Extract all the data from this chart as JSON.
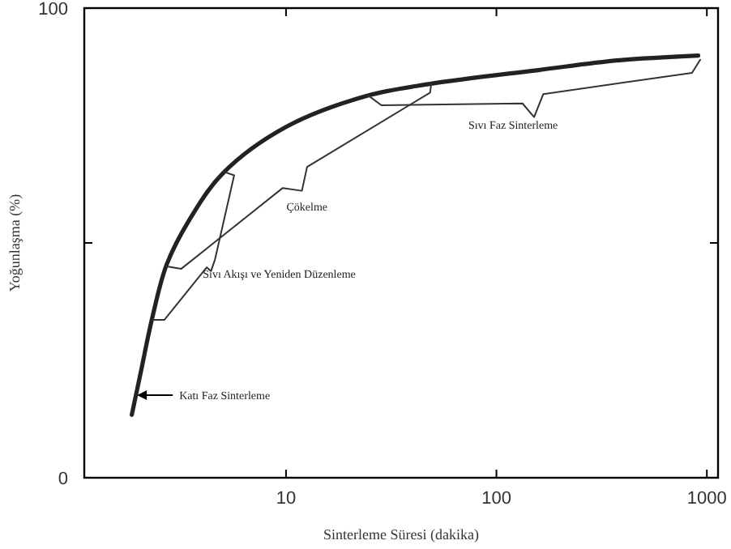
{
  "chart_data": {
    "type": "line",
    "xlabel": "Sinterleme Süresi (dakika)",
    "ylabel": "Yoğunlaşma (%)",
    "log": "x",
    "xlim": [
      1.1,
      1130
    ],
    "xticks": [
      10,
      100,
      1000
    ],
    "ylim": [
      0,
      100
    ],
    "yticks": [
      0,
      {
        "value": 50,
        "label": null
      },
      100
    ],
    "grid": false,
    "marker": "none",
    "line_style": "solid",
    "series": [
      {
        "color": "#222222",
        "x": [
          1.85,
          2.04,
          2.31,
          2.71,
          3.44,
          5.03,
          10,
          24.1,
          49,
          158,
          386,
          910
        ],
        "values": [
          13.4,
          22.4,
          33.9,
          45.4,
          54.6,
          64.9,
          74.7,
          81.3,
          83.9,
          86.8,
          88.9,
          89.9
        ]
      },
      {
        "color": "#333333",
        "x": [
          2.31,
          2.64,
          4.2,
          4.4,
          4.6,
          5.67,
          5.03
        ],
        "values": [
          33.6,
          33.6,
          44.8,
          44,
          46.5,
          64.4,
          65.2
        ]
      },
      {
        "color": "#333333",
        "x": [
          2.71,
          3.18,
          9.65,
          11.9,
          12.6,
          48.4,
          49
        ],
        "values": [
          45,
          44.5,
          61.7,
          61.1,
          66.2,
          82,
          83.9
        ]
      },
      {
        "color": "#333333",
        "x": [
          24.6,
          28.4,
          133,
          151,
          167,
          850,
          930
        ],
        "values": [
          81.4,
          79.3,
          79.7,
          76.8,
          81.7,
          86.2,
          89
        ]
      }
    ],
    "annotations": [
      {
        "text": "Katı Faz Sinterleme",
        "x": 1.96,
        "y": 17.6
      },
      "Sıvı Akışı ve Yeniden Düzenleme",
      "Çökelme",
      "Sıvı Faz Sinterleme"
    ]
  }
}
